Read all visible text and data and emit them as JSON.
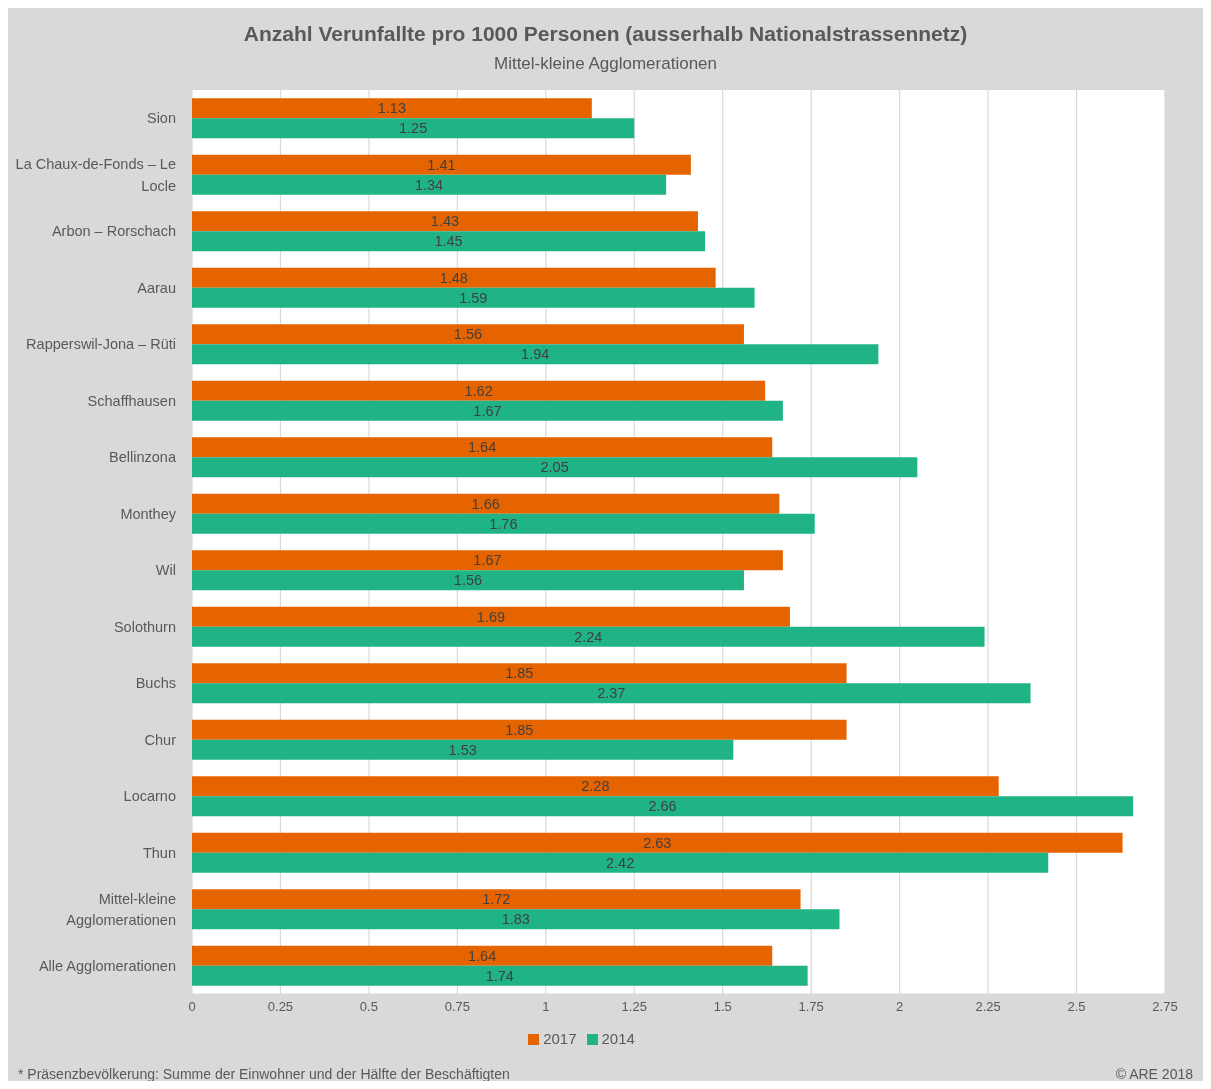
{
  "chart_data": {
    "type": "bar",
    "orientation": "horizontal",
    "title": "Anzahl Verunfallte pro 1000 Personen (ausserhalb Nationalstrassennetz)",
    "subtitle": "Mittel-kleine Agglomerationen",
    "categories": [
      "Sion",
      "La Chaux-de-Fonds – Le Locle",
      "Arbon – Rorschach",
      "Aarau",
      "Rapperswil-Jona – Rüti",
      "Schaffhausen",
      "Bellinzona",
      "Monthey",
      "Wil",
      "Solothurn",
      "Buchs",
      "Chur",
      "Locarno",
      "Thun",
      "Mittel-kleine Agglomerationen",
      "Alle Agglomerationen"
    ],
    "series": [
      {
        "name": "2017",
        "color": "#e66400",
        "values": [
          1.13,
          1.41,
          1.43,
          1.48,
          1.56,
          1.62,
          1.64,
          1.66,
          1.67,
          1.69,
          1.85,
          1.85,
          2.28,
          2.63,
          1.72,
          1.64
        ]
      },
      {
        "name": "2014",
        "color": "#20b386",
        "values": [
          1.25,
          1.34,
          1.45,
          1.59,
          1.94,
          1.67,
          2.05,
          1.76,
          1.56,
          2.24,
          2.37,
          1.53,
          2.66,
          2.42,
          1.83,
          1.74
        ]
      }
    ],
    "xlim": [
      0,
      2.75
    ],
    "xticks": [
      0,
      0.25,
      0.5,
      0.75,
      1,
      1.25,
      1.5,
      1.75,
      2,
      2.25,
      2.5,
      2.75
    ],
    "grid": "x",
    "legend": "bottom",
    "data_labels": true,
    "annotations": [
      "* Präsenzbevölkerung: Summe der Einwohner und der Hälfte der Beschäftigten",
      "© ARE 2018"
    ]
  }
}
